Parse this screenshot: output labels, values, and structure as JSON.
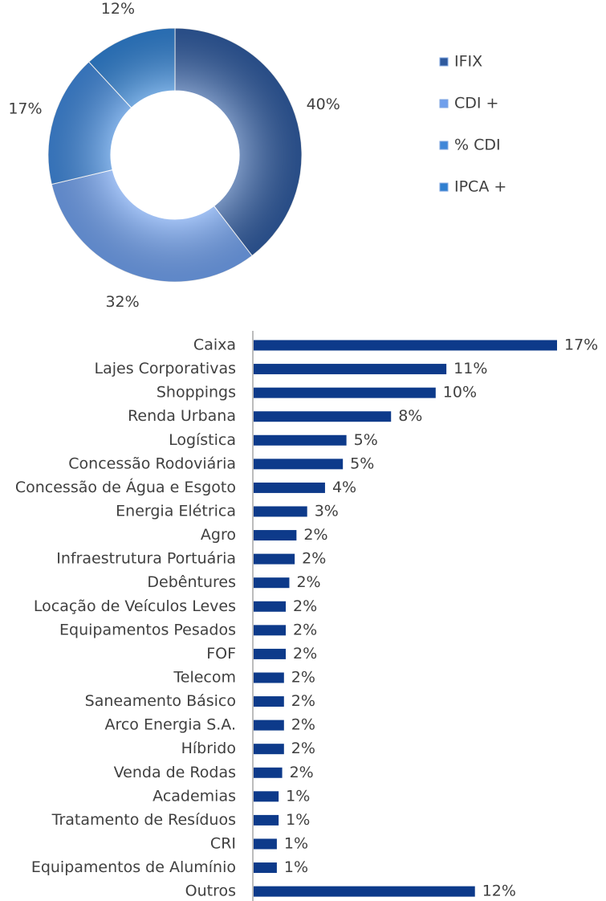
{
  "chart_data": [
    {
      "type": "donut",
      "categories": [
        "IFIX",
        "CDI +",
        "% CDI",
        "IPCA +"
      ],
      "values": [
        40,
        32,
        17,
        12
      ],
      "value_labels": [
        "40%",
        "32%",
        "17%",
        "12%"
      ],
      "colors": [
        "#2f5a9e",
        "#6f9fec",
        "#3f86d8",
        "#2f7fd0"
      ],
      "legend": "right"
    },
    {
      "type": "hbar",
      "categories": [
        "Caixa",
        "Lajes Corporativas",
        "Shoppings",
        "Renda Urbana",
        "Logística",
        "Concessão Rodoviária",
        "Concessão de Água e Esgoto",
        "Energia Elétrica",
        "Agro",
        "Infraestrutura Portuária",
        "Debêntures",
        "Locação de Veículos Leves",
        "Equipamentos Pesados",
        "FOF",
        "Telecom",
        "Saneamento Básico",
        "Arco Energia S.A.",
        "Híbrido",
        "Venda de Rodas",
        "Academias",
        "Tratamento de Resíduos",
        "CRI",
        "Equipamentos de Alumínio",
        "Outros"
      ],
      "values": [
        17.0,
        10.8,
        10.2,
        7.7,
        5.2,
        5.0,
        4.0,
        3.0,
        2.4,
        2.3,
        2.0,
        1.8,
        1.8,
        1.8,
        1.7,
        1.7,
        1.7,
        1.7,
        1.6,
        1.4,
        1.4,
        1.3,
        1.3,
        12.4
      ],
      "value_labels": [
        "17%",
        "11%",
        "10%",
        "8%",
        "5%",
        "5%",
        "4%",
        "3%",
        "2%",
        "2%",
        "2%",
        "2%",
        "2%",
        "2%",
        "2%",
        "2%",
        "2%",
        "2%",
        "2%",
        "1%",
        "1%",
        "1%",
        "1%",
        "12%"
      ],
      "color": "#0d3a8a"
    }
  ]
}
